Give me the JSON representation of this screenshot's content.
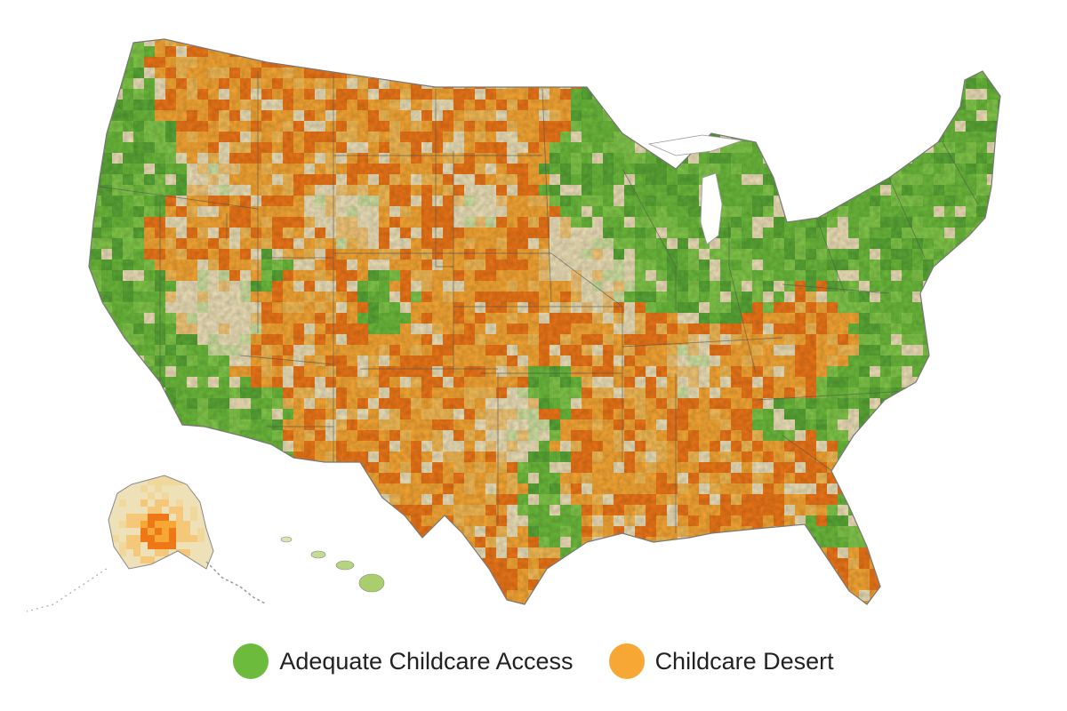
{
  "colors": {
    "adequate": "#6cbb3c",
    "desert": "#f7a734",
    "desert_dark": "#ee7718",
    "neutral": "#eee1b8",
    "border": "#555555"
  },
  "legend": {
    "items": [
      {
        "label": "Adequate Childcare Access",
        "color": "#6cbb3c"
      },
      {
        "label": "Childcare Desert",
        "color": "#f7a734"
      }
    ]
  }
}
